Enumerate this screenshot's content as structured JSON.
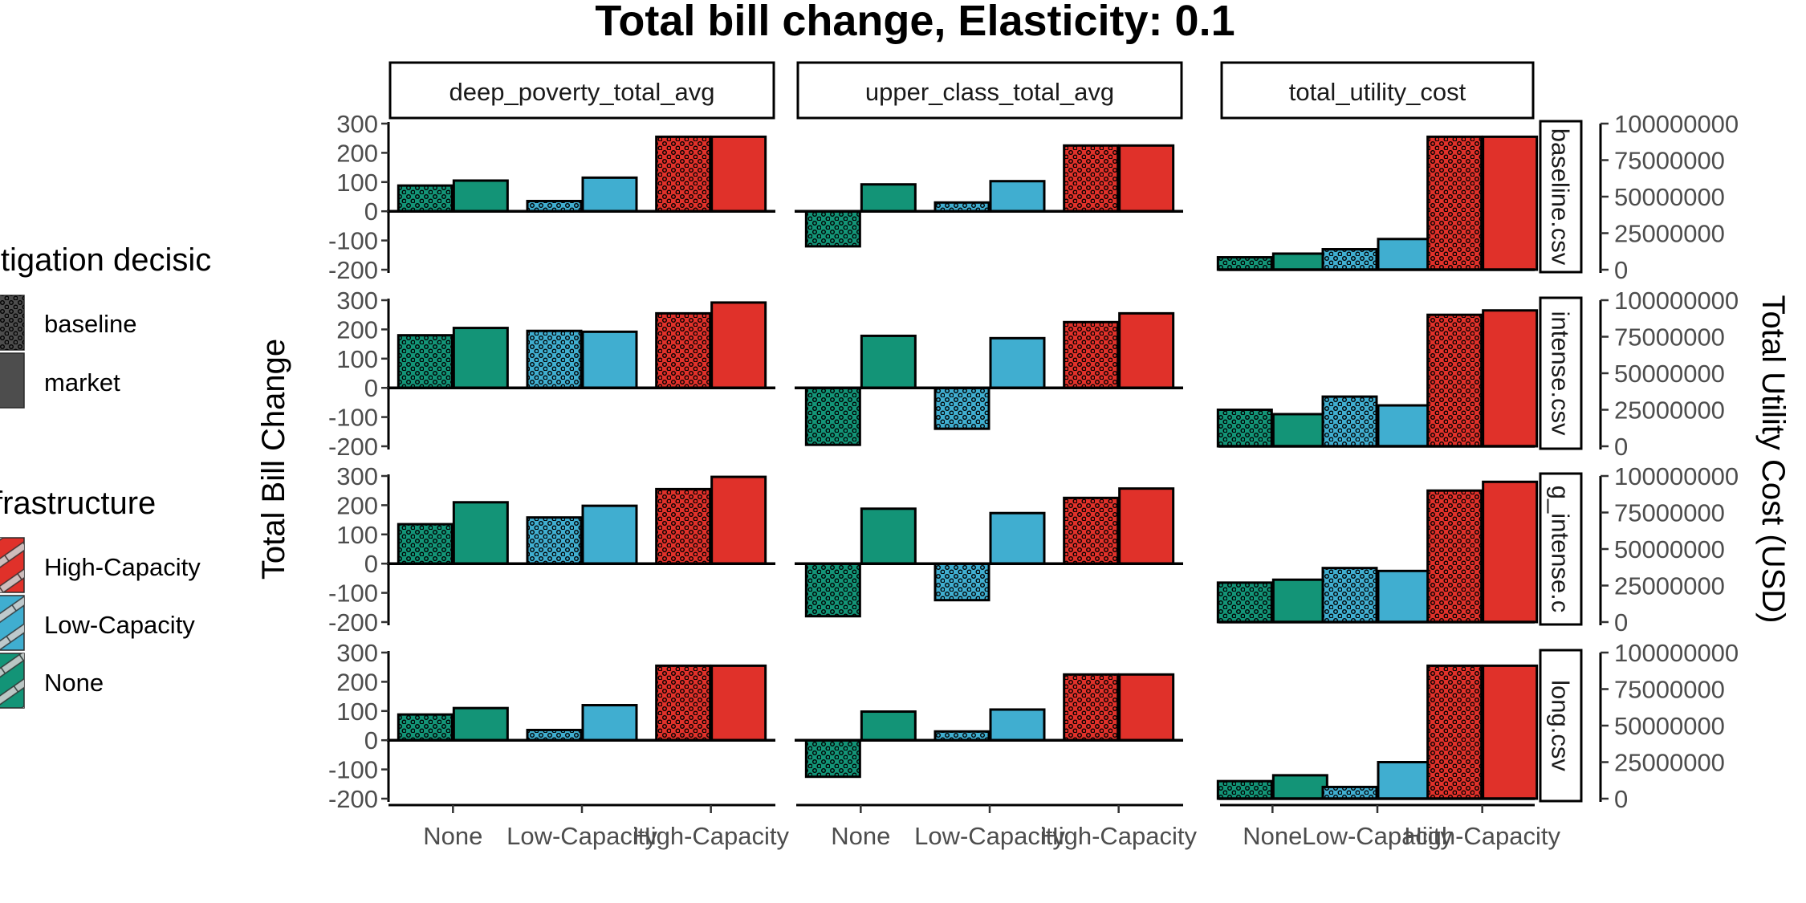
{
  "chart_data": {
    "type": "bar",
    "title": "Total bill change, Elasticity: 0.1",
    "ylabel_left": "Total Bill Change",
    "ylabel_right": "Total Utility Cost (USD)",
    "xlabel": "",
    "categories": [
      "None",
      "Low-Capacity",
      "High-Capacity"
    ],
    "columns": [
      "deep_poverty_total_avg",
      "upper_class_total_avg",
      "total_utility_cost"
    ],
    "rows": [
      "baseline.csv",
      "intense.csv",
      "g_intense.c",
      "long.csv"
    ],
    "fill_colors": {
      "None": "#139477",
      "Low-Capacity": "#40AED0",
      "High-Capacity": "#E0312A"
    },
    "ylim_bill": [
      -200,
      300
    ],
    "yticks_bill": [
      "300",
      "200",
      "100",
      "0",
      "-100",
      "-200"
    ],
    "ylim_cost": [
      0,
      100000000
    ],
    "yticks_cost": [
      "100000000",
      "75000000",
      "50000000",
      "25000000",
      "0"
    ],
    "legend": {
      "mitigation_title": "itigation decisic",
      "mitigation_items": [
        "baseline",
        "market"
      ],
      "infrastructure_title": "frastructure",
      "infrastructure_items": [
        "High-Capacity",
        "Low-Capacity",
        "None"
      ]
    },
    "series": [
      {
        "name": "baseline",
        "pattern": "dots"
      },
      {
        "name": "market",
        "pattern": "solid"
      }
    ],
    "panels": [
      {
        "row": "baseline.csv",
        "column": "deep_poverty_total_avg",
        "values": [
          [
            88,
            105
          ],
          [
            35,
            115
          ],
          [
            255,
            255
          ]
        ]
      },
      {
        "row": "baseline.csv",
        "column": "upper_class_total_avg",
        "values": [
          [
            -120,
            92
          ],
          [
            30,
            103
          ],
          [
            225,
            225
          ]
        ]
      },
      {
        "row": "baseline.csv",
        "column": "total_utility_cost",
        "values": [
          [
            8500000,
            11000000
          ],
          [
            14000000,
            21000000
          ],
          [
            91000000,
            91000000
          ]
        ]
      },
      {
        "row": "intense.csv",
        "column": "deep_poverty_total_avg",
        "values": [
          [
            180,
            205
          ],
          [
            195,
            192
          ],
          [
            255,
            292
          ]
        ]
      },
      {
        "row": "intense.csv",
        "column": "upper_class_total_avg",
        "values": [
          [
            -195,
            178
          ],
          [
            -140,
            170
          ],
          [
            225,
            255
          ]
        ]
      },
      {
        "row": "intense.csv",
        "column": "total_utility_cost",
        "values": [
          [
            25000000,
            22000000
          ],
          [
            34000000,
            28000000
          ],
          [
            90000000,
            93000000
          ]
        ]
      },
      {
        "row": "g_intense.c",
        "column": "deep_poverty_total_avg",
        "values": [
          [
            135,
            210
          ],
          [
            158,
            198
          ],
          [
            255,
            297
          ]
        ]
      },
      {
        "row": "g_intense.c",
        "column": "upper_class_total_avg",
        "values": [
          [
            -180,
            188
          ],
          [
            -125,
            173
          ],
          [
            225,
            257
          ]
        ]
      },
      {
        "row": "g_intense.c",
        "column": "total_utility_cost",
        "values": [
          [
            27000000,
            29000000
          ],
          [
            37000000,
            35000000
          ],
          [
            90000000,
            96000000
          ]
        ]
      },
      {
        "row": "long.csv",
        "column": "deep_poverty_total_avg",
        "values": [
          [
            88,
            110
          ],
          [
            35,
            120
          ],
          [
            255,
            255
          ]
        ]
      },
      {
        "row": "long.csv",
        "column": "upper_class_total_avg",
        "values": [
          [
            -125,
            98
          ],
          [
            30,
            105
          ],
          [
            225,
            225
          ]
        ]
      },
      {
        "row": "long.csv",
        "column": "total_utility_cost",
        "values": [
          [
            12000000,
            16000000
          ],
          [
            8000000,
            25000000
          ],
          [
            91000000,
            91000000
          ]
        ]
      }
    ]
  }
}
